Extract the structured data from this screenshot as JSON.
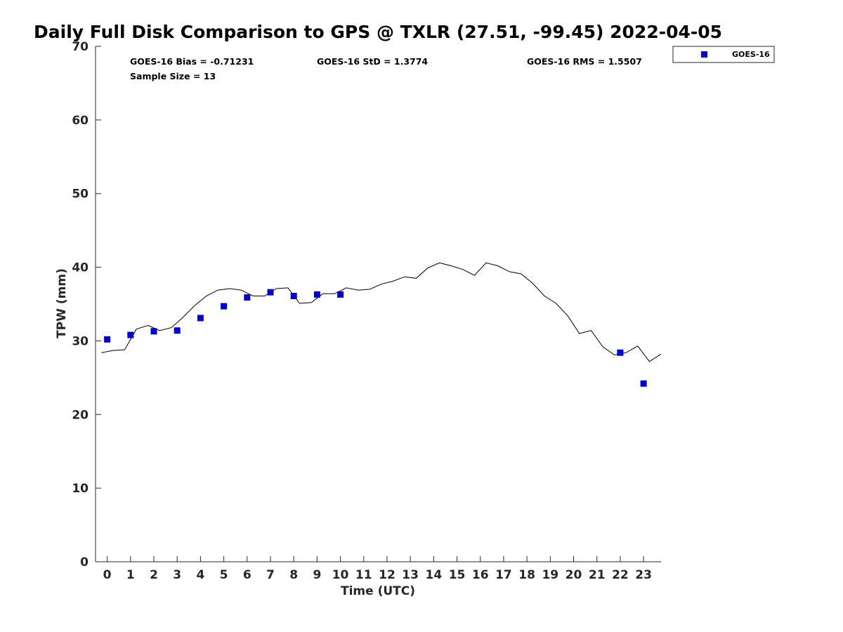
{
  "chart_data": {
    "type": "scatter",
    "title": "Daily Full Disk Comparison to GPS @ TXLR (27.51, -99.45) 2022-04-05",
    "xlabel": "Time (UTC)",
    "ylabel": "TPW (mm)",
    "xlim": [
      -0.5,
      23.75
    ],
    "ylim": [
      0,
      70
    ],
    "x_ticks": [
      "0",
      "1",
      "2",
      "3",
      "4",
      "5",
      "6",
      "7",
      "8",
      "9",
      "10",
      "11",
      "12",
      "13",
      "14",
      "15",
      "16",
      "17",
      "18",
      "19",
      "20",
      "21",
      "22",
      "23"
    ],
    "y_ticks": [
      "0",
      "10",
      "20",
      "30",
      "40",
      "50",
      "60",
      "70"
    ],
    "grid": false,
    "legend_position": "outside-top-right",
    "annotations": {
      "bias": "GOES-16 Bias = -0.71231",
      "std": "GOES-16 StD = 1.3774",
      "rms": "GOES-16 RMS = 1.5507",
      "sample": "Sample Size = 13"
    },
    "series": [
      {
        "name": "GOES-16",
        "style": "square-markers",
        "color": "#0000dd",
        "x": [
          0,
          1,
          2,
          3,
          4,
          5,
          6,
          7,
          8,
          9,
          10,
          22,
          23
        ],
        "y": [
          30.2,
          30.8,
          31.3,
          31.4,
          33.1,
          34.7,
          35.9,
          36.6,
          36.1,
          36.3,
          36.3,
          28.4,
          24.2
        ]
      },
      {
        "style": "line",
        "color": "#000000",
        "x": [
          -0.25,
          0.25,
          0.75,
          1.25,
          1.75,
          2.25,
          2.75,
          3.25,
          3.75,
          4.25,
          4.75,
          5.25,
          5.75,
          6.25,
          6.75,
          7.25,
          7.75,
          8.25,
          8.75,
          9.25,
          9.75,
          10.25,
          10.75,
          11.25,
          11.75,
          12.25,
          12.75,
          13.25,
          13.75,
          14.25,
          14.75,
          15.25,
          15.75,
          16.25,
          16.75,
          17.25,
          17.75,
          18.25,
          18.75,
          19.25,
          19.75,
          20.25,
          20.75,
          21.25,
          21.75,
          22.25,
          22.75,
          23.25,
          23.75
        ],
        "y": [
          28.4,
          28.7,
          28.8,
          31.6,
          32.1,
          31.4,
          31.8,
          33.2,
          34.8,
          36.1,
          36.9,
          37.1,
          36.9,
          36.1,
          36.1,
          37.1,
          37.2,
          35.1,
          35.2,
          36.4,
          36.4,
          37.2,
          36.9,
          37.0,
          37.7,
          38.1,
          38.7,
          38.5,
          39.9,
          40.6,
          40.2,
          39.7,
          38.9,
          40.6,
          40.2,
          39.4,
          39.1,
          37.8,
          36.1,
          35.1,
          33.4,
          31.0,
          31.4,
          29.2,
          28.1,
          28.4,
          29.3,
          27.2,
          28.2
        ]
      }
    ]
  }
}
